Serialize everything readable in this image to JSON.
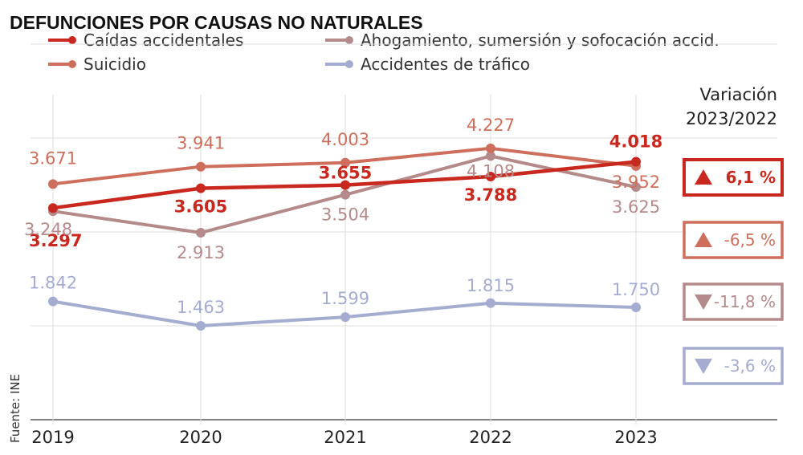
{
  "chart_data": {
    "type": "line",
    "title": "DEFUNCIONES POR CAUSAS NO NATURALES",
    "x": [
      "2019",
      "2020",
      "2021",
      "2022",
      "2023"
    ],
    "ylim": [
      0,
      4800
    ],
    "grid": true,
    "legend_position": "top",
    "series": [
      {
        "name": "Caídas accidentales",
        "color": "#c8281e",
        "values": [
          3297,
          3605,
          3655,
          3788,
          4018
        ],
        "labels": [
          "3.297",
          "3.605",
          "3.655",
          "3.788",
          "4.018"
        ],
        "variation": "6,1 %",
        "trend": "up",
        "bold": true
      },
      {
        "name": "Suicidio",
        "color": "#cd6f5c",
        "values": [
          3671,
          3941,
          4003,
          4227,
          3952
        ],
        "labels": [
          "3.671",
          "3.941",
          "4.003",
          "4.227",
          "3.952"
        ],
        "variation": "-6,5 %",
        "trend": "up",
        "bold": false
      },
      {
        "name": "Ahogamiento, sumersión y sofocación accid.",
        "color": "#b48a8b",
        "values": [
          3248,
          2913,
          3504,
          4108,
          3625
        ],
        "labels": [
          "3.248",
          "2.913",
          "3.504",
          "4.108",
          "3.625"
        ],
        "variation": "-11,8 %",
        "trend": "down",
        "bold": false
      },
      {
        "name": "Accidentes de tráfico",
        "color": "#a4acd0",
        "values": [
          1842,
          1463,
          1599,
          1815,
          1750
        ],
        "labels": [
          "1.842",
          "1.463",
          "1.599",
          "1.815",
          "1.750"
        ],
        "variation": "-3,6 %",
        "trend": "down",
        "bold": false
      }
    ],
    "variation_title": [
      "Variación",
      "2023/2022"
    ],
    "source": "Fuente: INE"
  }
}
